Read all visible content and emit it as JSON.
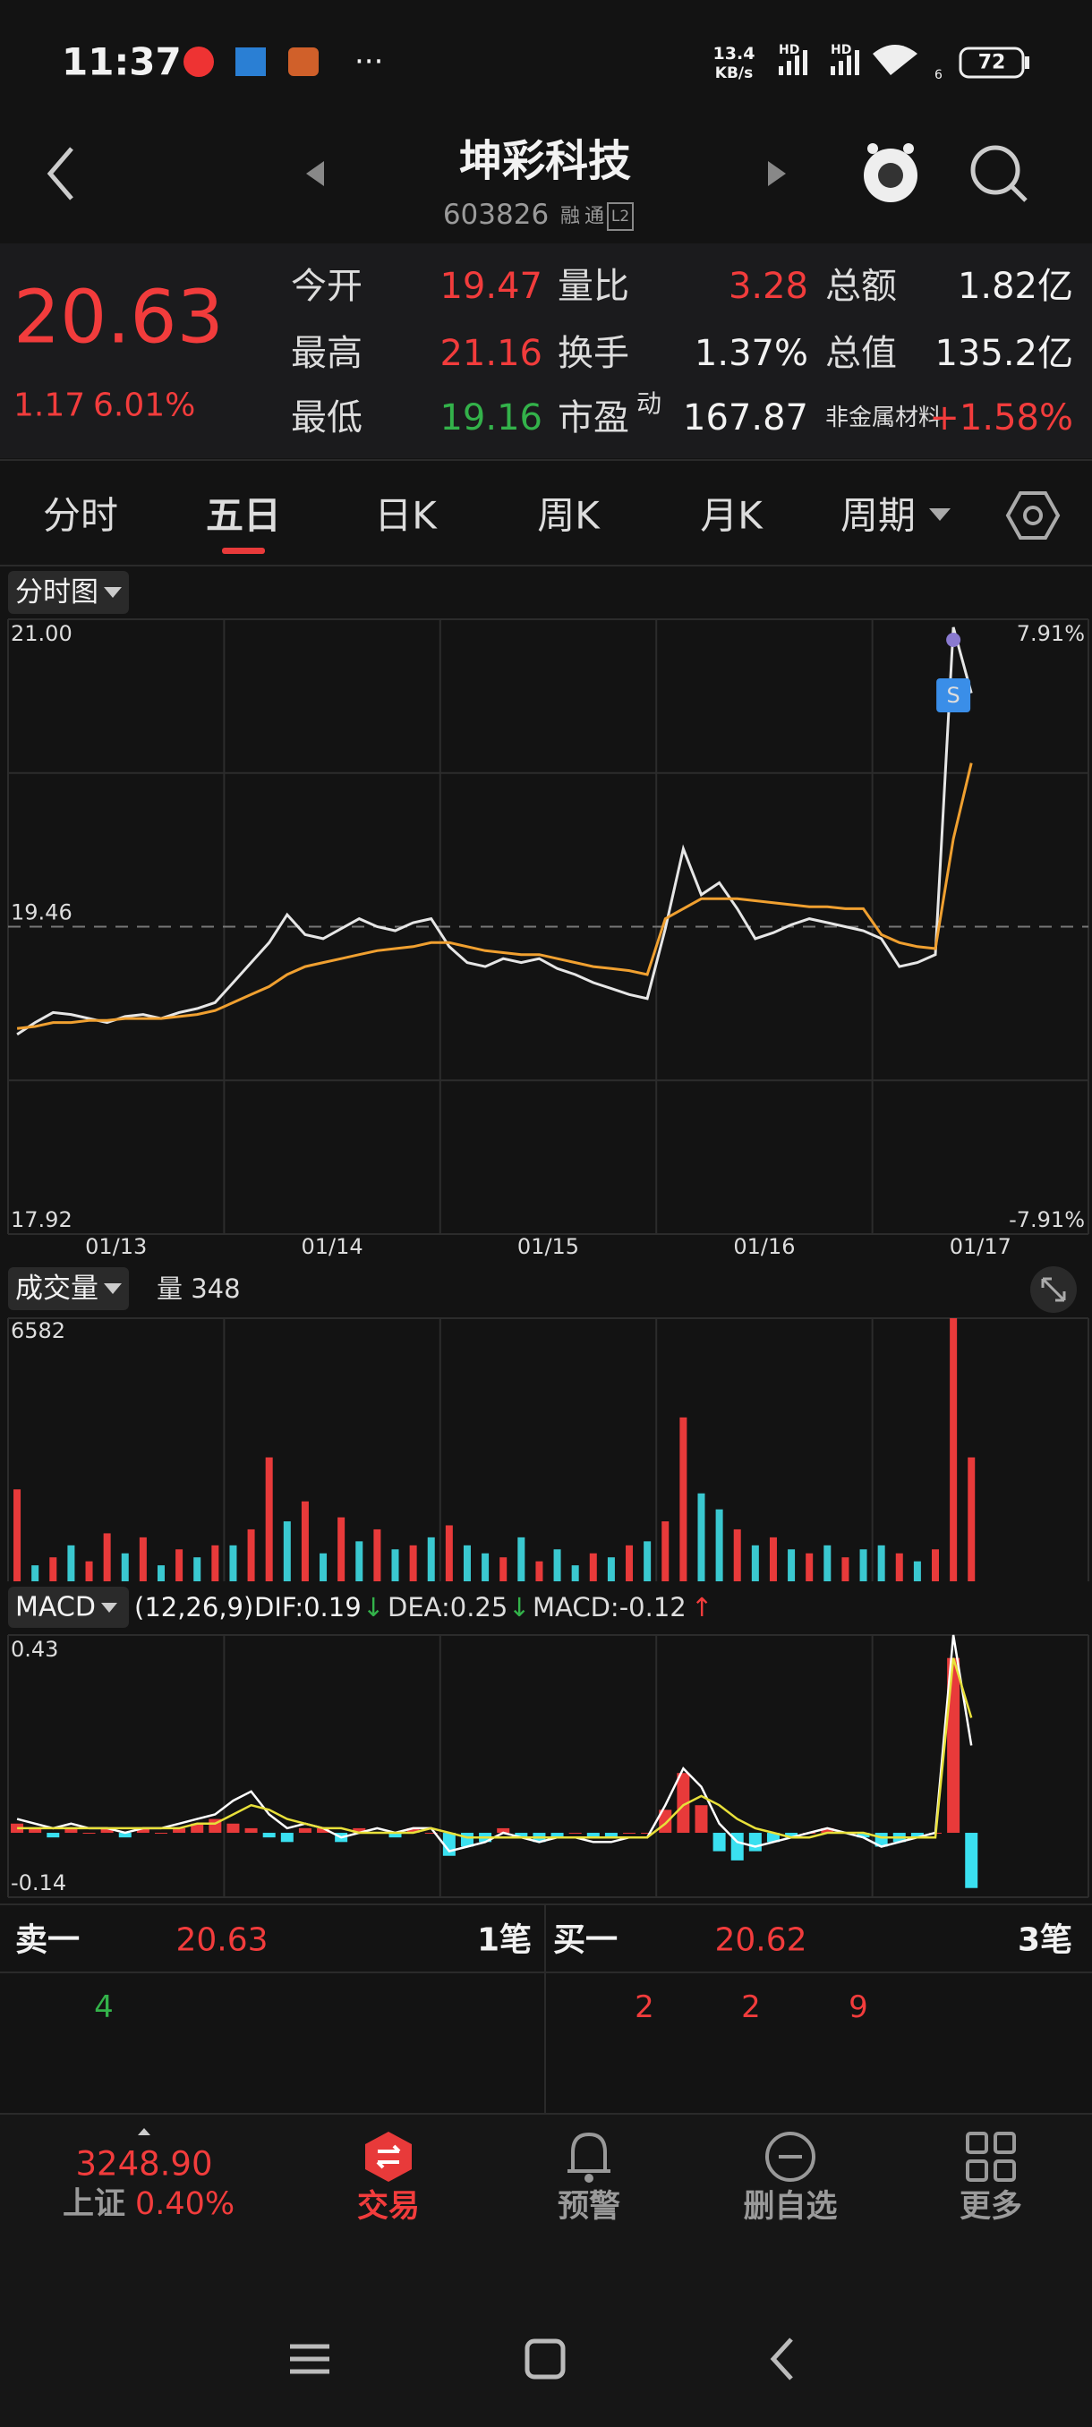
{
  "status_bar": {
    "time": "11:37",
    "speed": "13.4",
    "speed_unit": "KB/s",
    "hd": "HD",
    "wifi_badge": "6",
    "battery": "72"
  },
  "header": {
    "title": "坤彩科技",
    "code": "603826",
    "badges": [
      "融",
      "通",
      "L2"
    ]
  },
  "quote": {
    "price": "20.63",
    "change": "1.17",
    "change_pct": "6.01%",
    "rows": [
      [
        {
          "label": "今开",
          "value": "19.47"
        },
        {
          "label": "量比",
          "value": "3.28"
        },
        {
          "label": "总额",
          "value": "1.82亿"
        }
      ],
      [
        {
          "label": "最高",
          "value": "21.16"
        },
        {
          "label": "换手",
          "value": "1.37%"
        },
        {
          "label": "总值",
          "value": "135.2亿"
        }
      ],
      [
        {
          "label": "最低",
          "value": "19.16"
        },
        {
          "label": "市盈",
          "sup": "动",
          "value": "167.87"
        },
        {
          "label": "非金属材料",
          "value": "+1.58%"
        }
      ]
    ]
  },
  "tabs": [
    "分时",
    "五日",
    "日K",
    "周K",
    "月K",
    "周期"
  ],
  "panels": {
    "price": "分时图",
    "volume": "成交量",
    "volume_now": "量 348",
    "macd": "MACD",
    "macd_params": "(12,26,9)",
    "dif": "DIF:0.19",
    "dif_arrow": "↓",
    "dea": "DEA:0.25",
    "dea_arrow": "↓",
    "macd_value": "MACD:-0.12",
    "macd_arrow": "↑"
  },
  "chart_data": [
    {
      "type": "line",
      "categories": [
        "01/13",
        "01/14",
        "01/15",
        "01/16",
        "01/17"
      ],
      "series": [
        {
          "color": "#e6e6e6",
          "values": [
            [
              18.92,
              18.98,
              19.03,
              19.02,
              19.0,
              18.98,
              19.01,
              19.02,
              19.0,
              19.03,
              19.05,
              19.08
            ],
            [
              19.18,
              19.28,
              19.38,
              19.52,
              19.42,
              19.4,
              19.45,
              19.5,
              19.46,
              19.44,
              19.48,
              19.5
            ],
            [
              19.36,
              19.28,
              19.26,
              19.3,
              19.28,
              19.3,
              19.25,
              19.22,
              19.18,
              19.15,
              19.12,
              19.1
            ],
            [
              19.45,
              19.85,
              19.62,
              19.68,
              19.55,
              19.4,
              19.43,
              19.47,
              19.5,
              19.48,
              19.46,
              19.44
            ],
            [
              19.4,
              19.26,
              19.28,
              19.32,
              20.96,
              20.63
            ]
          ]
        },
        {
          "color": "#f0a030",
          "values": [
            [
              18.95,
              18.96,
              18.98,
              18.98,
              18.99,
              18.99,
              19.0,
              19.0,
              19.0,
              19.01,
              19.02,
              19.04
            ],
            [
              19.08,
              19.12,
              19.16,
              19.22,
              19.26,
              19.28,
              19.3,
              19.32,
              19.34,
              19.35,
              19.36,
              19.38
            ],
            [
              19.38,
              19.36,
              19.34,
              19.33,
              19.32,
              19.32,
              19.3,
              19.28,
              19.26,
              19.25,
              19.24,
              19.22
            ],
            [
              19.5,
              19.55,
              19.6,
              19.6,
              19.6,
              19.59,
              19.58,
              19.57,
              19.56,
              19.56,
              19.55,
              19.55
            ],
            [
              19.42,
              19.38,
              19.36,
              19.35,
              19.9,
              20.28
            ]
          ]
        }
      ],
      "ylim": [
        17.92,
        21
      ],
      "yticks": [
        {
          "value": 21,
          "label": "21.00"
        },
        19.46,
        17.92
      ],
      "y2lim": [
        -7.91,
        7.91
      ],
      "y2ticks": [
        {
          "value": 7.91,
          "label": "7.91%"
        },
        {
          "value": -7.91,
          "label": "-7.91%"
        }
      ],
      "grid": true,
      "annotation": "S"
    },
    {
      "type": "bar",
      "ylim": [
        0,
        6582
      ],
      "yticks": [
        6582
      ],
      "series": [
        {
          "color": "#e83a3a",
          "values": [
            [
              2300,
              null,
              600,
              null,
              500,
              1200,
              null,
              1100,
              null,
              800,
              null,
              900
            ],
            [
              null,
              1300,
              3100,
              null,
              2000,
              null,
              1600,
              null,
              1300,
              null,
              900,
              null
            ],
            [
              1400,
              null,
              null,
              600,
              null,
              500,
              null,
              null,
              700,
              null,
              900,
              null
            ],
            [
              1500,
              4100,
              null,
              null,
              1300,
              null,
              1100,
              null,
              700,
              null,
              600,
              null
            ],
            [
              null,
              700,
              null,
              800,
              6582,
              3100
            ]
          ]
        },
        {
          "color": "#3ac8d0",
          "values": [
            [
              null,
              400,
              null,
              900,
              null,
              null,
              700,
              null,
              400,
              null,
              600,
              null
            ],
            [
              900,
              null,
              null,
              1500,
              null,
              700,
              null,
              1000,
              null,
              800,
              null,
              1100
            ],
            [
              null,
              900,
              700,
              null,
              1100,
              null,
              800,
              400,
              null,
              600,
              null,
              1000
            ],
            [
              null,
              null,
              2200,
              1800,
              null,
              900,
              null,
              800,
              null,
              900,
              null,
              800
            ],
            [
              900,
              null,
              500,
              null,
              null,
              null
            ]
          ]
        }
      ]
    },
    {
      "type": "macd",
      "ylim": [
        -0.14,
        0.43
      ],
      "yticks": [
        0.43,
        -0.14
      ],
      "histogram": {
        "up_color": "#e83a3a",
        "down_color": "#3ae0f0",
        "values": [
          [
            0.02,
            0.01,
            -0.01,
            0.01,
            0,
            0.01,
            -0.01,
            0.01,
            0,
            0.01,
            0.02,
            0.03
          ],
          [
            0.02,
            0.01,
            -0.01,
            -0.02,
            0.01,
            0.01,
            -0.02,
            0.01,
            0,
            -0.01,
            0.01,
            0
          ],
          [
            -0.05,
            -0.03,
            -0.02,
            0.01,
            -0.01,
            -0.02,
            -0.01,
            0,
            -0.01,
            -0.01,
            0,
            0
          ],
          [
            0.05,
            0.13,
            0.06,
            -0.04,
            -0.06,
            -0.04,
            -0.02,
            -0.01,
            0,
            0.01,
            0,
            -0.01
          ],
          [
            -0.03,
            -0.02,
            -0.01,
            0,
            0.38,
            -0.12
          ]
        ]
      },
      "series": [
        {
          "color": "#ffffff",
          "values": [
            [
              0.03,
              0.02,
              0.01,
              0.02,
              0.01,
              0.01,
              0,
              0.01,
              0.01,
              0.02,
              0.03,
              0.04
            ],
            [
              0.07,
              0.09,
              0.04,
              0.01,
              0.02,
              0.01,
              -0.01,
              0,
              0.01,
              0,
              0.01,
              0.01
            ],
            [
              -0.04,
              -0.03,
              -0.02,
              0,
              -0.01,
              -0.02,
              -0.01,
              -0.01,
              -0.02,
              -0.02,
              -0.01,
              -0.01
            ],
            [
              0.06,
              0.14,
              0.1,
              0.02,
              -0.02,
              -0.03,
              -0.02,
              -0.01,
              0,
              0.01,
              0,
              -0.01
            ],
            [
              -0.03,
              -0.02,
              -0.01,
              0,
              0.43,
              0.19
            ]
          ]
        },
        {
          "color": "#e8e03a",
          "values": [
            [
              0.01,
              0.01,
              0.01,
              0.01,
              0.01,
              0.01,
              0.01,
              0.01,
              0.01,
              0.01,
              0.02,
              0.02
            ],
            [
              0.04,
              0.06,
              0.05,
              0.03,
              0.02,
              0.01,
              0.01,
              0,
              0,
              0,
              0,
              0.01
            ],
            [
              0,
              -0.01,
              -0.01,
              -0.01,
              -0.01,
              -0.01,
              -0.01,
              -0.01,
              -0.01,
              -0.01,
              -0.01,
              -0.01
            ],
            [
              0.02,
              0.06,
              0.08,
              0.06,
              0.03,
              0.01,
              0,
              -0.01,
              -0.01,
              0,
              0,
              0
            ],
            [
              -0.01,
              -0.01,
              -0.01,
              -0.01,
              0.38,
              0.25
            ]
          ]
        }
      ]
    }
  ],
  "order_book": {
    "sell": {
      "label": "卖一",
      "price": "20.63",
      "count": "1笔",
      "volumes": [
        "4"
      ]
    },
    "buy": {
      "label": "买一",
      "price": "20.62",
      "count": "3笔",
      "volumes": [
        "2",
        "2",
        "9"
      ]
    }
  },
  "bottom_nav": {
    "index_value": "3248.90",
    "index_name": "上证",
    "index_change": "0.40%",
    "items": [
      "交易",
      "预警",
      "删自选",
      "更多"
    ]
  }
}
